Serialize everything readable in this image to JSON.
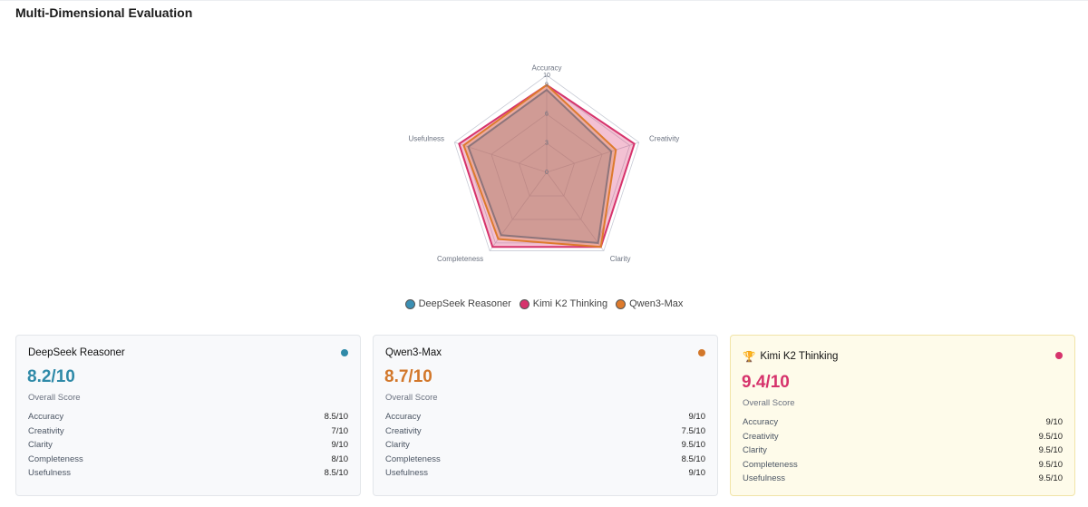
{
  "header": {
    "title": "Multi-Dimensional Evaluation"
  },
  "chart_data": {
    "type": "radar",
    "categories": [
      "Accuracy",
      "Creativity",
      "Clarity",
      "Completeness",
      "Usefulness"
    ],
    "series": [
      {
        "name": "DeepSeek Reasoner",
        "color": "#3b8fb3",
        "values": [
          8.5,
          7,
          9,
          8,
          8.5
        ]
      },
      {
        "name": "Kimi K2 Thinking",
        "color": "#d6336c",
        "values": [
          9,
          9.5,
          9.5,
          9.5,
          9.5
        ]
      },
      {
        "name": "Qwen3-Max",
        "color": "#dd7a2c",
        "values": [
          9,
          7.5,
          9.5,
          8.5,
          9
        ]
      }
    ],
    "rlim": [
      0,
      10
    ],
    "rticks": [
      0,
      3,
      6,
      9,
      10
    ],
    "grid": true,
    "legend": "bottom"
  },
  "cards": [
    {
      "name": "DeepSeek Reasoner",
      "color": "#2f8aa8",
      "score": "8.2/10",
      "score_label": "Overall Score",
      "highlight": false,
      "metrics": [
        {
          "label": "Accuracy",
          "value": "8.5/10"
        },
        {
          "label": "Creativity",
          "value": "7/10"
        },
        {
          "label": "Clarity",
          "value": "9/10"
        },
        {
          "label": "Completeness",
          "value": "8/10"
        },
        {
          "label": "Usefulness",
          "value": "8.5/10"
        }
      ]
    },
    {
      "name": "Qwen3-Max",
      "color": "#d2772a",
      "score": "8.7/10",
      "score_label": "Overall Score",
      "highlight": false,
      "metrics": [
        {
          "label": "Accuracy",
          "value": "9/10"
        },
        {
          "label": "Creativity",
          "value": "7.5/10"
        },
        {
          "label": "Clarity",
          "value": "9.5/10"
        },
        {
          "label": "Completeness",
          "value": "8.5/10"
        },
        {
          "label": "Usefulness",
          "value": "9/10"
        }
      ]
    },
    {
      "name": "Kimi K2 Thinking",
      "icon": "🏆",
      "color": "#d6336c",
      "score": "9.4/10",
      "score_label": "Overall Score",
      "highlight": true,
      "metrics": [
        {
          "label": "Accuracy",
          "value": "9/10"
        },
        {
          "label": "Creativity",
          "value": "9.5/10"
        },
        {
          "label": "Clarity",
          "value": "9.5/10"
        },
        {
          "label": "Completeness",
          "value": "9.5/10"
        },
        {
          "label": "Usefulness",
          "value": "9.5/10"
        }
      ]
    }
  ]
}
